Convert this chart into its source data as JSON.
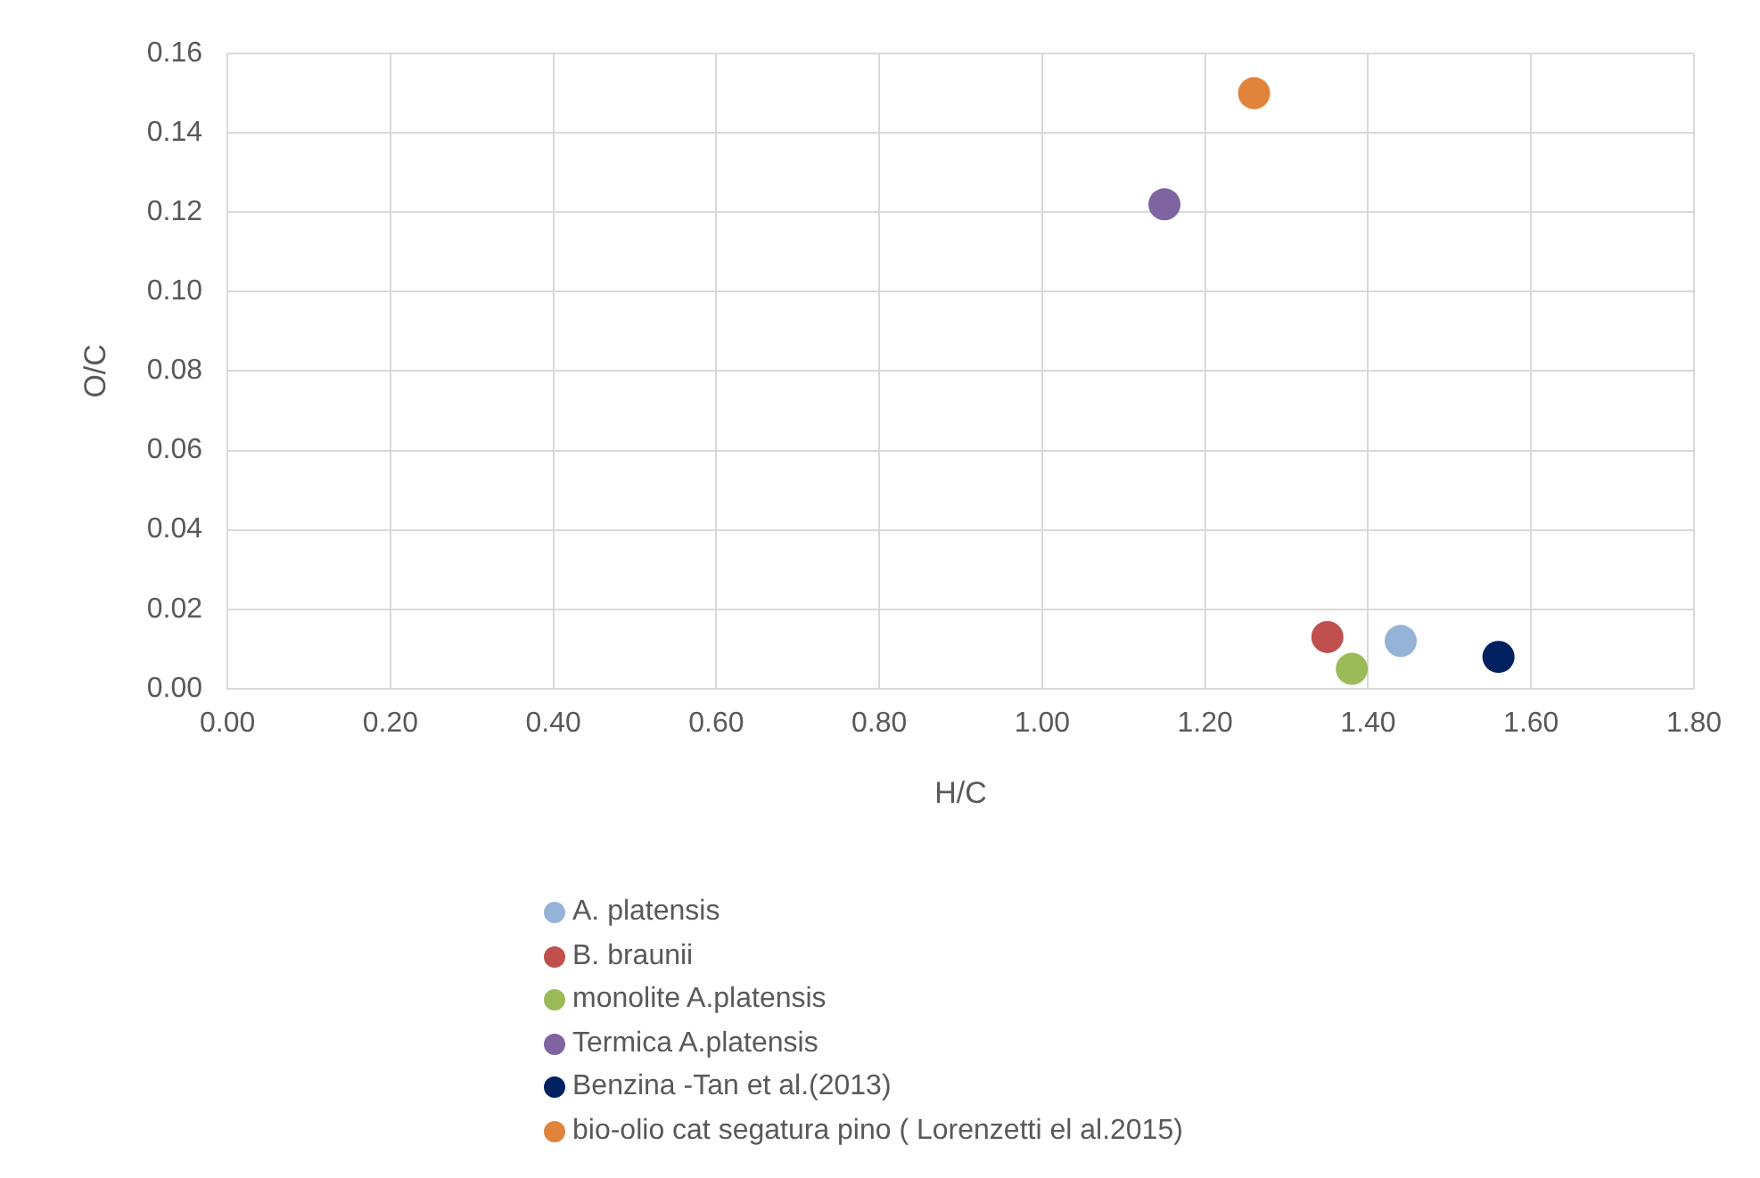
{
  "chart_data": {
    "type": "scatter",
    "xlabel": "H/C",
    "ylabel": "O/C",
    "xlim": [
      0,
      1.8
    ],
    "xticks": [
      {
        "value": 0,
        "label": "0.00"
      },
      {
        "value": 0.2,
        "label": "0.20"
      },
      {
        "value": 0.4,
        "label": "0.40"
      },
      {
        "value": 0.6,
        "label": "0.60"
      },
      {
        "value": 0.8,
        "label": "0.80"
      },
      {
        "value": 1,
        "label": "1.00"
      },
      {
        "value": 1.2,
        "label": "1.20"
      },
      {
        "value": 1.4,
        "label": "1.40"
      },
      {
        "value": 1.6,
        "label": "1.60"
      },
      {
        "value": 1.8,
        "label": "1.80"
      }
    ],
    "ylim": [
      0,
      0.16
    ],
    "yticks": [
      {
        "value": 0,
        "label": "0.00"
      },
      {
        "value": 0.02,
        "label": "0.02"
      },
      {
        "value": 0.04,
        "label": "0.04"
      },
      {
        "value": 0.06,
        "label": "0.06"
      },
      {
        "value": 0.08,
        "label": "0.08"
      },
      {
        "value": 0.1,
        "label": "0.10"
      },
      {
        "value": 0.12,
        "label": "0.12"
      },
      {
        "value": 0.14,
        "label": "0.14"
      },
      {
        "value": 0.16,
        "label": "0.16"
      }
    ],
    "grid": true,
    "legend": "bottom",
    "marker": "circle",
    "series": [
      {
        "name": "A. platensis",
        "color": "#95b3d7",
        "x": [
          1.44
        ],
        "values": [
          0.012
        ]
      },
      {
        "name": "B. braunii",
        "color": "#c0504d",
        "x": [
          1.35
        ],
        "values": [
          0.013
        ]
      },
      {
        "name": "monolite A.platensis",
        "color": "#9bbb59",
        "x": [
          1.38
        ],
        "values": [
          0.005
        ]
      },
      {
        "name": "Termica A.platensis",
        "color": "#8064a2",
        "x": [
          1.15
        ],
        "values": [
          0.122
        ]
      },
      {
        "name": "Benzina -Tan et al.(2013)",
        "color": "#002060",
        "x": [
          1.56
        ],
        "values": [
          0.008
        ]
      },
      {
        "name": "bio-olio cat segatura pino ( Lorenzetti el al.2015)",
        "color": "#e0843c",
        "x": [
          1.26
        ],
        "values": [
          0.15
        ]
      }
    ]
  }
}
